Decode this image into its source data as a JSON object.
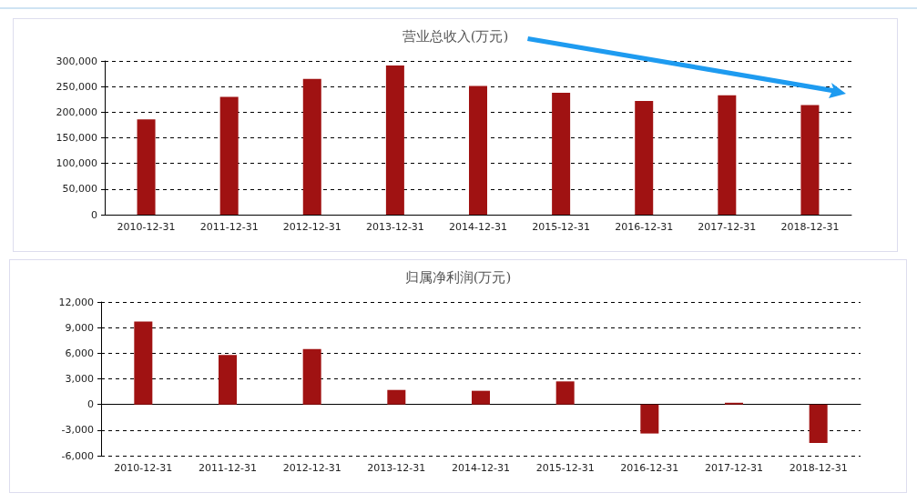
{
  "chart_data": [
    {
      "type": "bar",
      "title": "营业总收入(万元)",
      "categories": [
        "2010-12-31",
        "2011-12-31",
        "2012-12-31",
        "2013-12-31",
        "2014-12-31",
        "2015-12-31",
        "2016-12-31",
        "2017-12-31",
        "2018-12-31"
      ],
      "values": [
        186000,
        230000,
        265000,
        291000,
        251000,
        238000,
        222000,
        233000,
        214000
      ],
      "color": "#a01212",
      "ylim": [
        0,
        300000
      ],
      "yticks": [
        {
          "value": 0,
          "label": "0"
        },
        {
          "value": 50000,
          "label": "50,000"
        },
        {
          "value": 100000,
          "label": "100,000"
        },
        {
          "value": 150000,
          "label": "150,000"
        },
        {
          "value": 200000,
          "label": "200,000"
        },
        {
          "value": 250000,
          "label": "250,000"
        },
        {
          "value": 300000,
          "label": "300,000"
        }
      ],
      "grid": "y"
    },
    {
      "type": "bar",
      "title": "归属净利润(万元)",
      "categories": [
        "2010-12-31",
        "2011-12-31",
        "2012-12-31",
        "2013-12-31",
        "2014-12-31",
        "2015-12-31",
        "2016-12-31",
        "2017-12-31",
        "2018-12-31"
      ],
      "values": [
        9700,
        5800,
        6500,
        1700,
        1600,
        2700,
        -3400,
        200,
        -4500
      ],
      "color": "#a01212",
      "ylim": [
        -6000,
        12000
      ],
      "yticks": [
        {
          "value": -6000,
          "label": "-6,000"
        },
        {
          "value": -3000,
          "label": "-3,000"
        },
        {
          "value": 0,
          "label": "0"
        },
        {
          "value": 3000,
          "label": "3,000"
        },
        {
          "value": 6000,
          "label": "6,000"
        },
        {
          "value": 9000,
          "label": "9,000"
        },
        {
          "value": 12000,
          "label": "12,000"
        }
      ],
      "grid": "y"
    }
  ]
}
